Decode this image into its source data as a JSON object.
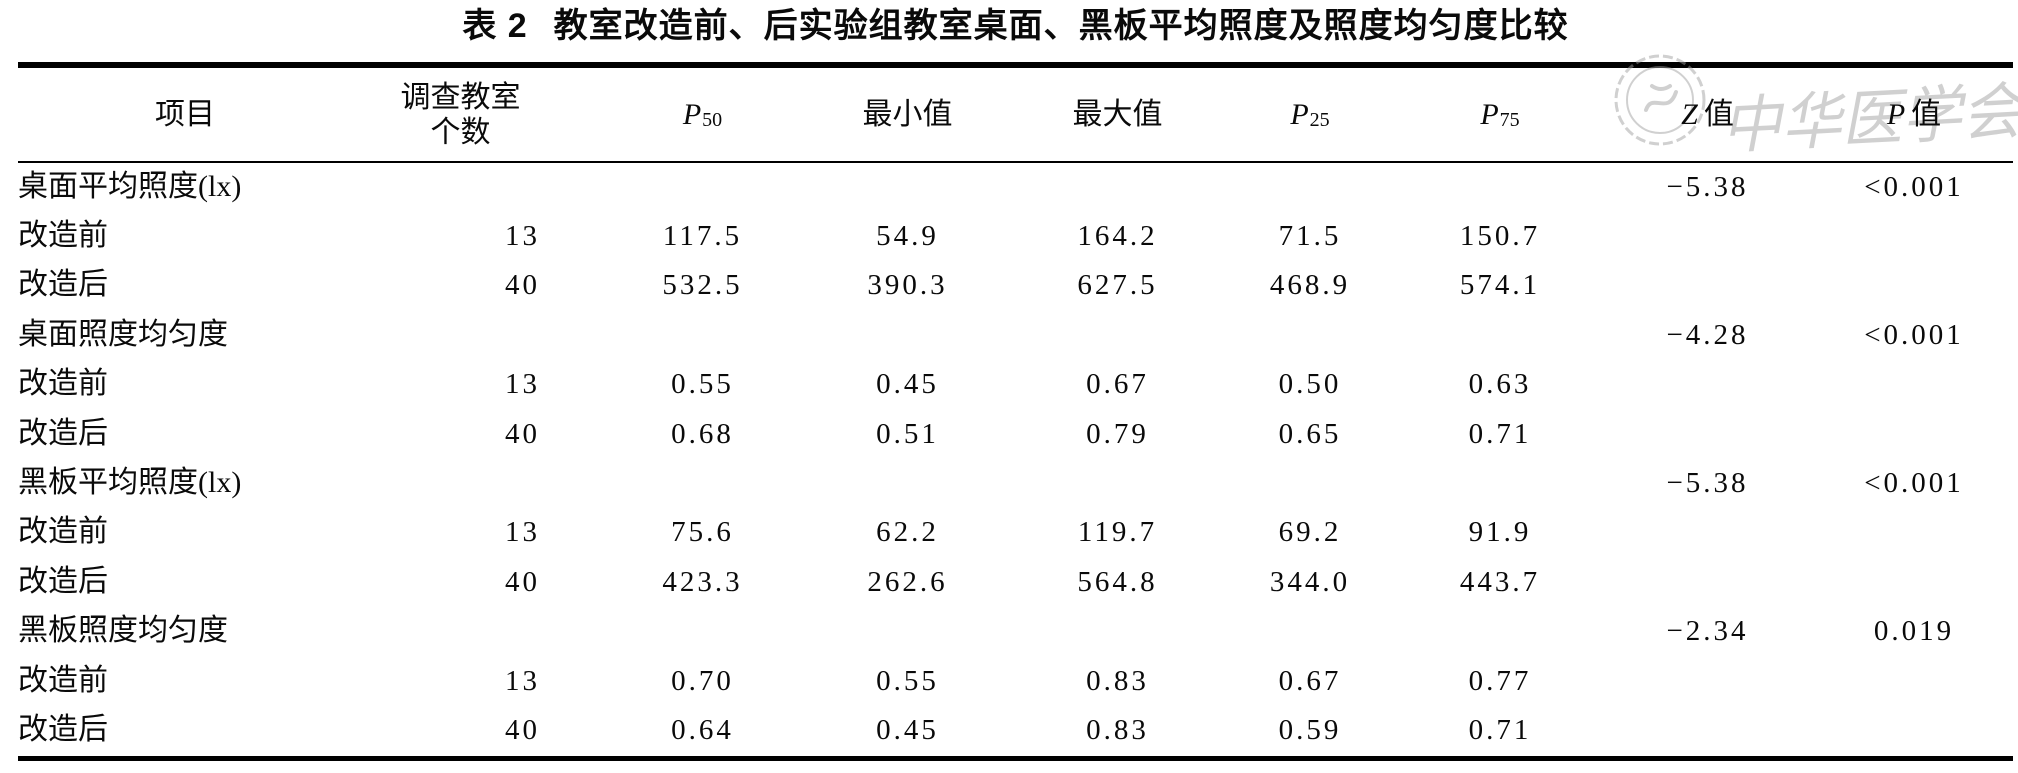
{
  "page": {
    "background": "#ffffff",
    "text_color": "#0a0a0a"
  },
  "title": {
    "prefix": "表 2",
    "text": "教室改造前、后实验组教室桌面、黑板平均照度及照度均匀度比较"
  },
  "watermark": {
    "text": "中华医学会",
    "color": "#9f9f9f"
  },
  "table": {
    "columns": [
      {
        "id": "item",
        "label": "项目"
      },
      {
        "id": "count",
        "label": "调查教室",
        "label2": "个数"
      },
      {
        "id": "p50",
        "label": "P",
        "sub": "50",
        "italic": true
      },
      {
        "id": "min",
        "label": "最小值"
      },
      {
        "id": "max",
        "label": "最大值"
      },
      {
        "id": "p25",
        "label": "P",
        "sub": "25",
        "italic": true
      },
      {
        "id": "p75",
        "label": "P",
        "sub": "75",
        "italic": true
      },
      {
        "id": "z",
        "label": "Z",
        "suffix": "值",
        "italic": true
      },
      {
        "id": "p",
        "label": "P",
        "suffix": "值",
        "italic": true
      }
    ],
    "rows": [
      {
        "type": "section",
        "label": "桌面平均照度(lx)",
        "z": "−5.38",
        "p": "<0.001"
      },
      {
        "type": "data",
        "label": "改造前",
        "values": [
          "13",
          "117.5",
          "54.9",
          "164.2",
          "71.5",
          "150.7"
        ]
      },
      {
        "type": "data",
        "label": "改造后",
        "values": [
          "40",
          "532.5",
          "390.3",
          "627.5",
          "468.9",
          "574.1"
        ]
      },
      {
        "type": "section",
        "label": "桌面照度均匀度",
        "z": "−4.28",
        "p": "<0.001"
      },
      {
        "type": "data",
        "label": "改造前",
        "values": [
          "13",
          "0.55",
          "0.45",
          "0.67",
          "0.50",
          "0.63"
        ]
      },
      {
        "type": "data",
        "label": "改造后",
        "values": [
          "40",
          "0.68",
          "0.51",
          "0.79",
          "0.65",
          "0.71"
        ]
      },
      {
        "type": "section",
        "label": "黑板平均照度(lx)",
        "z": "−5.38",
        "p": "<0.001"
      },
      {
        "type": "data",
        "label": "改造前",
        "values": [
          "13",
          "75.6",
          "62.2",
          "119.7",
          "69.2",
          "91.9"
        ]
      },
      {
        "type": "data",
        "label": "改造后",
        "values": [
          "40",
          "423.3",
          "262.6",
          "564.8",
          "344.0",
          "443.7"
        ]
      },
      {
        "type": "section",
        "label": "黑板照度均匀度",
        "z": "−2.34",
        "p": "0.019"
      },
      {
        "type": "data",
        "label": "改造前",
        "values": [
          "13",
          "0.70",
          "0.55",
          "0.83",
          "0.67",
          "0.77"
        ]
      },
      {
        "type": "data",
        "label": "改造后",
        "values": [
          "40",
          "0.64",
          "0.45",
          "0.83",
          "0.59",
          "0.71"
        ]
      }
    ]
  }
}
